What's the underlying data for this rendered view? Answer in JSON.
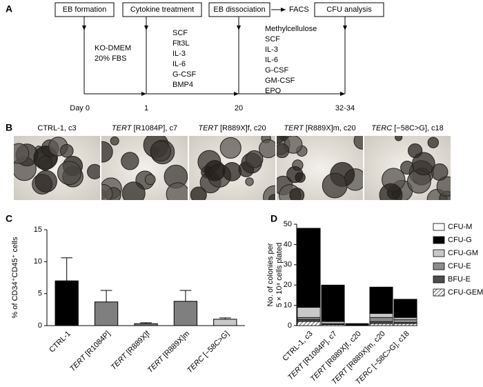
{
  "diagram": {
    "panel_label": "A",
    "steps": [
      "EB formation",
      "Cytokine treatment",
      "EB dissociation",
      "FACS",
      "CFU analysis"
    ],
    "days": [
      "Day 0",
      "1",
      "20",
      "32-34"
    ],
    "media": [
      [
        "KO-DMEM",
        "20% FBS"
      ],
      [
        "SCF",
        "Flt3L",
        "IL-3",
        "IL-6",
        "G-CSF",
        "BMP4"
      ],
      [
        "Methylcellulose",
        "SCF",
        "IL-3",
        "IL-6",
        "G-CSF",
        "GM-CSF",
        "EPO"
      ]
    ]
  },
  "photos": {
    "panel_label": "B",
    "titles": [
      [
        "CTRL-1, c3"
      ],
      [
        "TERT",
        " [R1084P], c7"
      ],
      [
        "TERT",
        " [R889X]f, c20"
      ],
      [
        "TERT",
        " [R889X]m, c20"
      ],
      [
        "TERC",
        " [−58C>G], c18"
      ]
    ]
  },
  "chart_data": [
    {
      "type": "bar",
      "panel_label": "C",
      "ylabel": "% of CD34⁺CD45⁺ cells",
      "categories": [
        [
          "CTRL-1"
        ],
        [
          "TERT",
          " [R1084P]"
        ],
        [
          "TERT",
          " [R889X]f"
        ],
        [
          "TERT",
          " [R889X]m"
        ],
        [
          "TERC",
          " [−58C>G]"
        ]
      ],
      "values": [
        7.0,
        3.7,
        0.3,
        3.8,
        1.0
      ],
      "errors": [
        3.6,
        1.8,
        0.15,
        1.7,
        0.2
      ],
      "colors": [
        "#000000",
        "#7f7f7f",
        "#7f7f7f",
        "#7f7f7f",
        "#c8c8c8"
      ],
      "ylim": [
        0,
        15
      ],
      "yticks": [
        0,
        5,
        10,
        15
      ]
    },
    {
      "type": "stacked-bar",
      "panel_label": "D",
      "ylabel": [
        "No. of colonies per",
        "5 × 10⁴ cells plated"
      ],
      "categories": [
        [
          "CTRL-1, c3"
        ],
        [
          "TERT",
          " [R1084P], c7"
        ],
        [
          "TERT",
          " [R889X]f, c20"
        ],
        [
          "TERT",
          " [R889X]m, c20"
        ],
        [
          "TERC",
          " [−58C>G], c18"
        ]
      ],
      "series": [
        {
          "name": "CFU-GEMM",
          "color": "hatch",
          "values": [
            2,
            0.5,
            0,
            1,
            1
          ]
        },
        {
          "name": "BFU-E",
          "color": "#4d4d4d",
          "values": [
            1,
            0.5,
            0,
            1,
            0.5
          ]
        },
        {
          "name": "CFU-E",
          "color": "#8c8c8c",
          "values": [
            1,
            0,
            0,
            2,
            1.5
          ]
        },
        {
          "name": "CFU-GM",
          "color": "#c8c8c8",
          "values": [
            5,
            1,
            0,
            2,
            1
          ]
        },
        {
          "name": "CFU-G",
          "color": "#000000",
          "values": [
            39,
            18,
            1,
            13,
            9
          ]
        },
        {
          "name": "CFU-M",
          "color": "#ffffff",
          "values": [
            0,
            0,
            0,
            0,
            0
          ]
        }
      ],
      "ylim": [
        0,
        50
      ],
      "yticks": [
        0,
        10,
        20,
        30,
        40,
        50
      ]
    }
  ]
}
